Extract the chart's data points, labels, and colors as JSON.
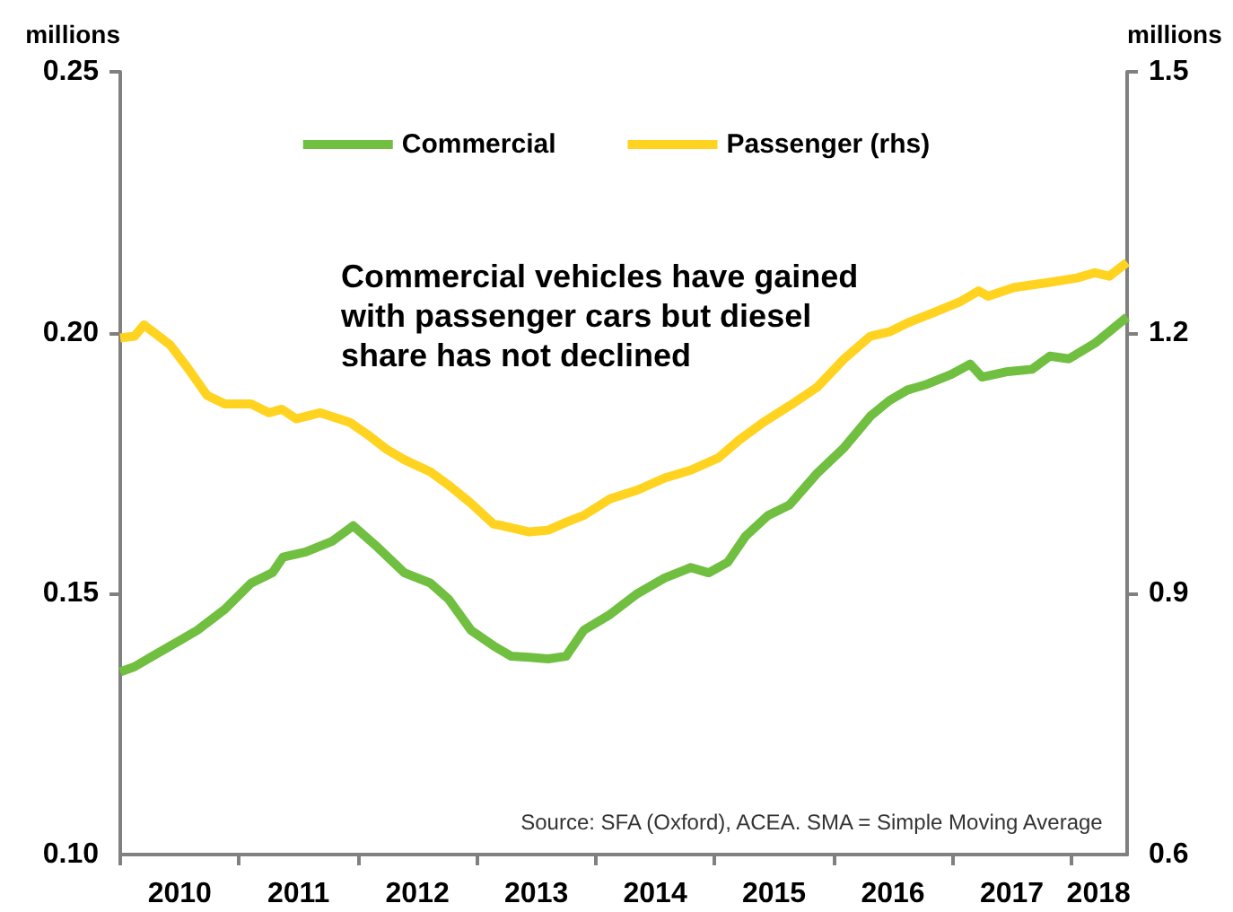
{
  "chart_data": {
    "type": "line",
    "ylabel": "millions",
    "y2label": "millions",
    "annotations": [
      "Commercial vehicles have gained\nwith passenger cars but diesel\nshare has not declined",
      "Source: SFA (Oxford), ACEA. SMA = Simple Moving Average"
    ],
    "xlim": [
      2010,
      2018.47
    ],
    "xticks": [
      {
        "value": 2010,
        "label": null
      },
      {
        "value": 2010.5,
        "label": "2010"
      },
      {
        "value": 2011,
        "label": null
      },
      {
        "value": 2011.5,
        "label": "2011"
      },
      {
        "value": 2012,
        "label": null
      },
      {
        "value": 2012.5,
        "label": "2012"
      },
      {
        "value": 2013,
        "label": null
      },
      {
        "value": 2013.5,
        "label": "2013"
      },
      {
        "value": 2014,
        "label": null
      },
      {
        "value": 2014.5,
        "label": "2014"
      },
      {
        "value": 2015,
        "label": null
      },
      {
        "value": 2015.5,
        "label": "2015"
      },
      {
        "value": 2016,
        "label": null
      },
      {
        "value": 2016.5,
        "label": "2016"
      },
      {
        "value": 2017,
        "label": null
      },
      {
        "value": 2017.5,
        "label": "2017"
      },
      {
        "value": 2018,
        "label": null
      },
      {
        "value": 2018.23,
        "label": "2018"
      }
    ],
    "ylim": [
      0.1,
      0.25
    ],
    "yticks": [
      {
        "value": 0.1,
        "label": "0.10"
      },
      {
        "value": 0.15,
        "label": "0.15"
      },
      {
        "value": 0.2,
        "label": "0.20"
      },
      {
        "value": 0.25,
        "label": "0.25"
      }
    ],
    "y2lim": [
      0.6,
      1.5
    ],
    "y2ticks": [
      0.6,
      0.9,
      1.2,
      1.5
    ],
    "grid": false,
    "legend": "top",
    "marker": "none",
    "line_style": "solid",
    "series": [
      {
        "name": "Commercial",
        "color": "#70bf41",
        "x": [
          2010.0,
          2010.12,
          2010.27,
          2010.5,
          2010.65,
          2010.88,
          2011.1,
          2011.28,
          2011.37,
          2011.56,
          2011.78,
          2011.96,
          2012.16,
          2012.39,
          2012.61,
          2012.76,
          2012.95,
          2013.14,
          2013.29,
          2013.44,
          2013.6,
          2013.75,
          2013.9,
          2014.12,
          2014.35,
          2014.58,
          2014.8,
          2014.95,
          2015.11,
          2015.26,
          2015.45,
          2015.63,
          2015.86,
          2016.09,
          2016.31,
          2016.47,
          2016.62,
          2016.77,
          2016.99,
          2017.15,
          2017.25,
          2017.45,
          2017.67,
          2017.82,
          2017.98,
          2018.2,
          2018.47
        ],
        "values": [
          0.135,
          0.136,
          0.138,
          0.141,
          0.143,
          0.147,
          0.152,
          0.154,
          0.157,
          0.158,
          0.16,
          0.163,
          0.159,
          0.154,
          0.152,
          0.149,
          0.143,
          0.14,
          0.138,
          0.1378,
          0.1375,
          0.138,
          0.143,
          0.146,
          0.15,
          0.153,
          0.155,
          0.154,
          0.156,
          0.161,
          0.165,
          0.167,
          0.173,
          0.178,
          0.184,
          0.187,
          0.189,
          0.19,
          0.192,
          0.194,
          0.1915,
          0.1925,
          0.193,
          0.1955,
          0.195,
          0.198,
          0.203
        ]
      },
      {
        "name": "Passenger (rhs)",
        "color": "#ffd320",
        "axis": "y2",
        "x": [
          2010.0,
          2010.12,
          2010.2,
          2010.42,
          2010.57,
          2010.73,
          2010.88,
          2011.1,
          2011.25,
          2011.36,
          2011.48,
          2011.68,
          2011.93,
          2012.08,
          2012.24,
          2012.39,
          2012.61,
          2012.76,
          2012.95,
          2013.14,
          2013.22,
          2013.44,
          2013.6,
          2013.75,
          2013.9,
          2014.12,
          2014.35,
          2014.58,
          2014.8,
          2015.03,
          2015.21,
          2015.41,
          2015.63,
          2015.86,
          2016.09,
          2016.31,
          2016.47,
          2016.62,
          2016.84,
          2017.07,
          2017.22,
          2017.3,
          2017.52,
          2017.82,
          2018.05,
          2018.2,
          2018.32,
          2018.47
        ],
        "values": [
          1.194,
          1.196,
          1.209,
          1.186,
          1.159,
          1.128,
          1.118,
          1.118,
          1.108,
          1.112,
          1.101,
          1.108,
          1.097,
          1.083,
          1.066,
          1.054,
          1.04,
          1.025,
          1.004,
          0.98,
          0.978,
          0.971,
          0.973,
          0.982,
          0.99,
          1.009,
          1.019,
          1.033,
          1.042,
          1.056,
          1.077,
          1.097,
          1.116,
          1.137,
          1.17,
          1.196,
          1.201,
          1.211,
          1.223,
          1.236,
          1.248,
          1.242,
          1.252,
          1.258,
          1.263,
          1.269,
          1.265,
          1.281
        ]
      }
    ]
  }
}
